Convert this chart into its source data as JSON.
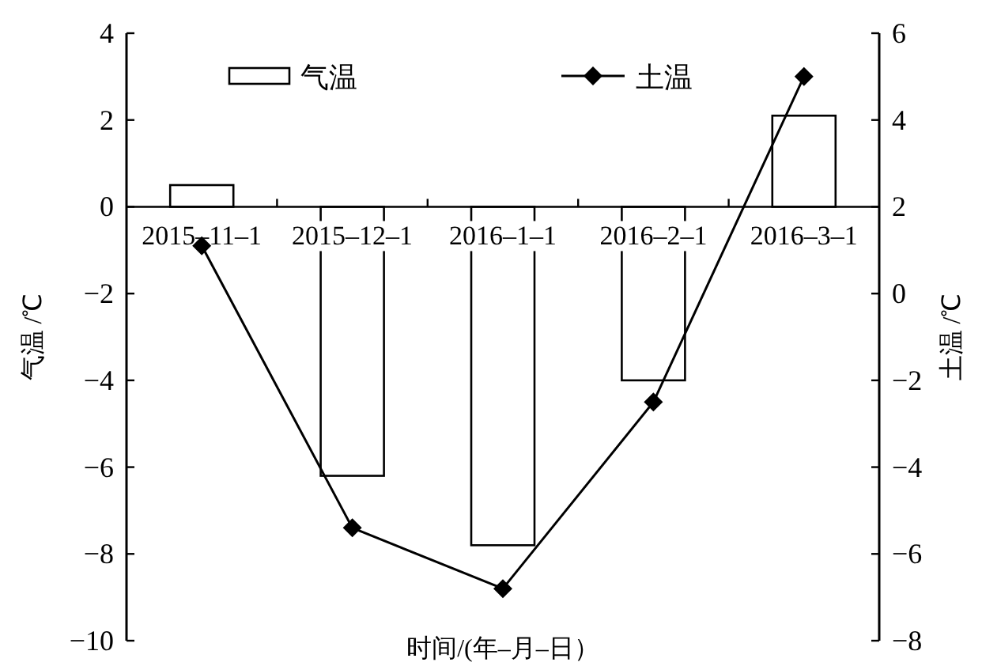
{
  "chart_data": {
    "type": "bar",
    "xlabel": "时间/(年–月–日）",
    "ylabel": "气温 /℃",
    "y2label": "土温 /℃",
    "categories": [
      "2015–11–1",
      "2015–12–1",
      "2016–1–1",
      "2016–2–1",
      "2016–3–1"
    ],
    "series": [
      {
        "name": "气温",
        "color": "#ffffff",
        "values": [
          0.5,
          -6.2,
          -7.8,
          -4.0,
          2.1
        ]
      },
      {
        "name": "土温",
        "type": "line",
        "axis": "y2",
        "color": "#000000",
        "marker": "diamond",
        "values": [
          1.1,
          -5.4,
          -6.8,
          -2.5,
          5.0
        ]
      }
    ],
    "ylim": [
      -10,
      4
    ],
    "yticks": [
      -10,
      -8,
      -6,
      -4,
      -2,
      0,
      2,
      4
    ],
    "y2lim": [
      -8,
      6
    ],
    "y2ticks": [
      -8,
      -6,
      -4,
      -2,
      0,
      2,
      4,
      6
    ],
    "legend": "top",
    "grid": false
  }
}
